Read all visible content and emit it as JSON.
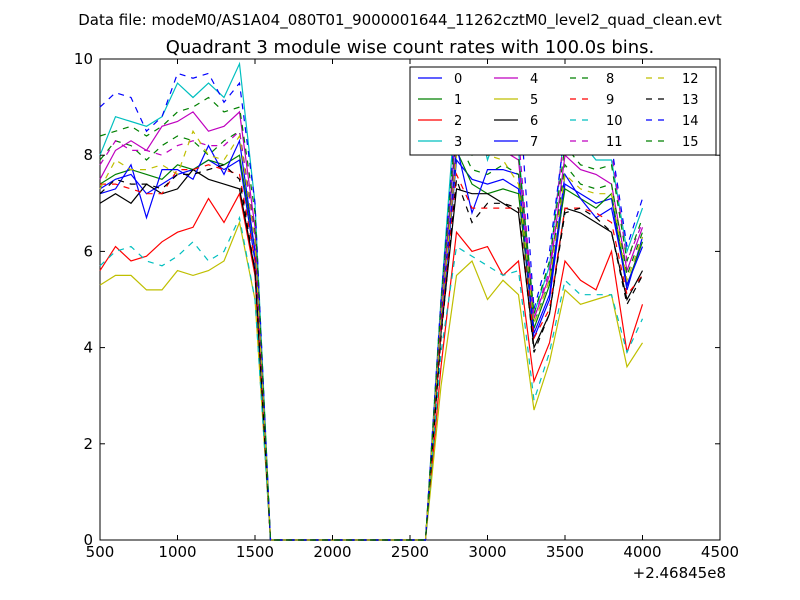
{
  "chart_data": {
    "type": "line",
    "suptitle": "Data file: modeM0/AS1A04_080T01_9000001644_11262cztM0_level2_quad_clean.evt",
    "title": "Quadrant 3 module wise count rates with 100.0s bins.",
    "xlabel": "",
    "ylabel": "",
    "x_offset_label": "+2.46845e8",
    "xlim": [
      500,
      4500
    ],
    "ylim": [
      0,
      10
    ],
    "x_ticks": [
      "500",
      "1000",
      "1500",
      "2000",
      "2500",
      "3000",
      "3500",
      "4000",
      "4500"
    ],
    "y_ticks": [
      "0",
      "2",
      "4",
      "6",
      "8",
      "10"
    ],
    "legend_position": "top-right",
    "legend_columns": 4,
    "grid": false,
    "x": [
      500,
      600,
      700,
      800,
      900,
      1000,
      1100,
      1200,
      1300,
      1400,
      1500,
      1600,
      1700,
      1800,
      1900,
      2000,
      2100,
      2200,
      2300,
      2400,
      2500,
      2600,
      2700,
      2800,
      2900,
      3000,
      3100,
      3200,
      3300,
      3400,
      3500,
      3600,
      3700,
      3800,
      3900,
      4000
    ],
    "series": [
      {
        "name": "0",
        "color": "#0000ff",
        "dash": "solid",
        "values": [
          7.3,
          7.5,
          7.6,
          7.2,
          7.4,
          7.6,
          7.7,
          7.9,
          7.7,
          7.9,
          5.8,
          0,
          0,
          0,
          0,
          0,
          0,
          0,
          0,
          0,
          0,
          0,
          4.4,
          7.9,
          7.5,
          7.4,
          7.5,
          7.3,
          4.2,
          5.0,
          7.4,
          7.2,
          7.0,
          7.1,
          5.2,
          6.3
        ]
      },
      {
        "name": "1",
        "color": "#008000",
        "dash": "solid",
        "values": [
          7.4,
          7.6,
          7.7,
          7.6,
          7.5,
          7.8,
          7.7,
          7.9,
          7.8,
          8.0,
          6.0,
          0,
          0,
          0,
          0,
          0,
          0,
          0,
          0,
          0,
          0,
          0,
          4.6,
          8.1,
          7.4,
          7.2,
          7.3,
          7.2,
          4.4,
          5.3,
          7.3,
          7.1,
          6.9,
          7.2,
          5.3,
          6.2
        ]
      },
      {
        "name": "2",
        "color": "#ff0000",
        "dash": "solid",
        "values": [
          5.6,
          6.1,
          5.8,
          5.9,
          6.2,
          6.4,
          6.5,
          7.1,
          6.6,
          7.2,
          5.5,
          0,
          0,
          0,
          0,
          0,
          0,
          0,
          0,
          0,
          0,
          0,
          3.6,
          6.4,
          6.0,
          6.1,
          5.5,
          5.8,
          3.3,
          4.1,
          5.8,
          5.4,
          5.2,
          6.0,
          3.9,
          4.9
        ]
      },
      {
        "name": "3",
        "color": "#00bfbf",
        "dash": "solid",
        "values": [
          8.0,
          8.8,
          8.7,
          8.6,
          8.8,
          9.5,
          9.2,
          9.5,
          9.2,
          9.9,
          7.0,
          0,
          0,
          0,
          0,
          0,
          0,
          0,
          0,
          0,
          0,
          0,
          5.0,
          9.3,
          9.3,
          7.9,
          8.8,
          8.1,
          4.7,
          5.7,
          8.6,
          8.3,
          7.9,
          7.9,
          6.0,
          6.9
        ]
      },
      {
        "name": "4",
        "color": "#bf00bf",
        "dash": "solid",
        "values": [
          7.5,
          8.1,
          8.3,
          8.1,
          8.6,
          8.7,
          8.9,
          8.5,
          8.6,
          8.9,
          6.5,
          0,
          0,
          0,
          0,
          0,
          0,
          0,
          0,
          0,
          0,
          0,
          4.8,
          8.6,
          8.1,
          8.0,
          8.1,
          7.9,
          4.6,
          5.5,
          8.0,
          7.7,
          7.6,
          7.4,
          5.6,
          6.5
        ]
      },
      {
        "name": "5",
        "color": "#bfbf00",
        "dash": "solid",
        "values": [
          5.3,
          5.5,
          5.5,
          5.2,
          5.2,
          5.6,
          5.5,
          5.6,
          5.8,
          6.6,
          5.0,
          0,
          0,
          0,
          0,
          0,
          0,
          0,
          0,
          0,
          0,
          0,
          3.2,
          5.5,
          5.8,
          5.0,
          5.4,
          5.1,
          2.7,
          3.7,
          5.2,
          4.9,
          5.0,
          5.1,
          3.6,
          4.1
        ]
      },
      {
        "name": "6",
        "color": "#000000",
        "dash": "solid",
        "values": [
          7.0,
          7.2,
          7.0,
          7.4,
          7.2,
          7.3,
          7.7,
          7.5,
          7.4,
          7.3,
          5.6,
          0,
          0,
          0,
          0,
          0,
          0,
          0,
          0,
          0,
          0,
          0,
          4.3,
          7.3,
          7.2,
          7.2,
          7.0,
          6.8,
          4.0,
          4.7,
          6.9,
          6.8,
          6.6,
          6.4,
          5.0,
          5.6
        ]
      },
      {
        "name": "7",
        "color": "#0000ff",
        "dash": "solid",
        "values": [
          7.2,
          7.3,
          7.8,
          6.7,
          7.7,
          7.7,
          7.5,
          8.2,
          7.6,
          8.3,
          6.0,
          0,
          0,
          0,
          0,
          0,
          0,
          0,
          0,
          0,
          0,
          0,
          4.5,
          8.2,
          6.8,
          7.7,
          7.7,
          7.6,
          4.3,
          5.1,
          7.6,
          7.1,
          6.7,
          6.9,
          5.3,
          6.1
        ]
      },
      {
        "name": "8",
        "color": "#008000",
        "dash": "dashed",
        "values": [
          7.9,
          8.3,
          8.2,
          7.9,
          8.2,
          8.4,
          8.3,
          8.0,
          8.3,
          8.5,
          6.4,
          0,
          0,
          0,
          0,
          0,
          0,
          0,
          0,
          0,
          0,
          0,
          4.7,
          8.4,
          7.7,
          7.6,
          7.8,
          7.6,
          4.5,
          5.4,
          7.8,
          7.4,
          7.3,
          7.4,
          5.5,
          6.4
        ]
      },
      {
        "name": "9",
        "color": "#ff0000",
        "dash": "dashed",
        "values": [
          7.4,
          7.4,
          7.3,
          7.2,
          7.2,
          7.7,
          7.7,
          7.8,
          7.7,
          7.6,
          5.8,
          0,
          0,
          0,
          0,
          0,
          0,
          0,
          0,
          0,
          0,
          0,
          4.4,
          7.6,
          6.9,
          6.9,
          6.9,
          6.9,
          4.2,
          4.8,
          6.9,
          6.9,
          6.8,
          6.6,
          5.1,
          5.5
        ]
      },
      {
        "name": "10",
        "color": "#00bfbf",
        "dash": "dashed",
        "values": [
          5.7,
          6.0,
          6.1,
          5.8,
          5.7,
          5.9,
          6.2,
          5.8,
          6.0,
          6.7,
          5.0,
          0,
          0,
          0,
          0,
          0,
          0,
          0,
          0,
          0,
          0,
          0,
          3.9,
          6.1,
          5.9,
          5.7,
          5.5,
          5.6,
          2.9,
          3.9,
          5.4,
          5.1,
          5.1,
          5.1,
          3.9,
          4.6
        ]
      },
      {
        "name": "11",
        "color": "#bf00bf",
        "dash": "dashed",
        "values": [
          7.8,
          8.3,
          8.1,
          8.1,
          8.0,
          8.2,
          8.3,
          8.2,
          8.2,
          8.5,
          6.3,
          0,
          0,
          0,
          0,
          0,
          0,
          0,
          0,
          0,
          0,
          0,
          4.7,
          8.2,
          8.8,
          8.7,
          9.0,
          8.4,
          4.6,
          5.6,
          8.6,
          8.1,
          8.0,
          8.1,
          5.8,
          6.6
        ]
      },
      {
        "name": "12",
        "color": "#bfbf00",
        "dash": "dashed",
        "values": [
          7.3,
          7.9,
          7.7,
          7.7,
          7.8,
          7.6,
          8.5,
          8.0,
          7.9,
          8.4,
          6.2,
          0,
          0,
          0,
          0,
          0,
          0,
          0,
          0,
          0,
          0,
          0,
          4.6,
          8.0,
          9.1,
          8.0,
          7.9,
          7.4,
          4.5,
          5.4,
          7.6,
          7.3,
          7.2,
          7.2,
          5.4,
          6.3
        ]
      },
      {
        "name": "13",
        "color": "#000000",
        "dash": "dashed",
        "values": [
          7.2,
          7.5,
          7.4,
          7.4,
          7.3,
          7.6,
          7.6,
          7.7,
          7.8,
          7.5,
          5.6,
          0,
          0,
          0,
          0,
          0,
          0,
          0,
          0,
          0,
          0,
          0,
          4.2,
          7.5,
          6.6,
          7.0,
          7.0,
          6.9,
          3.9,
          4.7,
          6.8,
          6.9,
          6.7,
          6.4,
          4.9,
          5.5
        ]
      },
      {
        "name": "14",
        "color": "#0000ff",
        "dash": "dashed",
        "values": [
          9.0,
          9.3,
          9.2,
          8.5,
          8.8,
          9.7,
          9.6,
          9.7,
          9.1,
          9.5,
          7.0,
          0,
          0,
          0,
          0,
          0,
          0,
          0,
          0,
          0,
          0,
          0,
          5.0,
          8.9,
          8.8,
          9.0,
          8.9,
          9.5,
          4.8,
          6.0,
          8.5,
          8.3,
          8.5,
          8.2,
          6.1,
          7.1
        ]
      },
      {
        "name": "15",
        "color": "#008000",
        "dash": "dashed",
        "values": [
          8.4,
          8.5,
          8.6,
          8.4,
          8.6,
          8.9,
          9.0,
          9.2,
          8.9,
          9.0,
          6.8,
          0,
          0,
          0,
          0,
          0,
          0,
          0,
          0,
          0,
          0,
          0,
          4.9,
          8.8,
          8.0,
          8.1,
          8.2,
          8.0,
          4.7,
          5.8,
          8.2,
          7.8,
          7.7,
          7.8,
          5.8,
          6.7
        ]
      }
    ]
  }
}
